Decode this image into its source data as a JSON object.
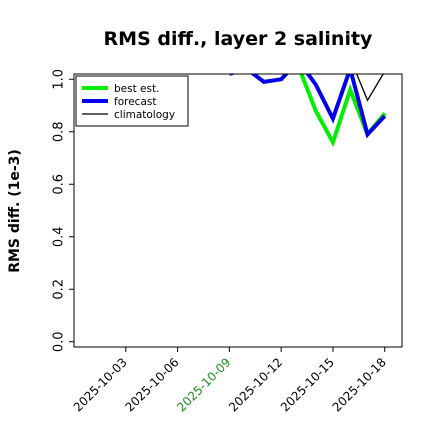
{
  "chart_data": {
    "type": "line",
    "title": "RMS diff., layer 2 salinity",
    "ylabel": "RMS diff. (1e-3)",
    "xlabel": "",
    "ylim": [
      -0.02,
      1.02
    ],
    "xlim": [
      "2025-09-30",
      "2025-10-19"
    ],
    "x_ticks": [
      "2025-10-03",
      "2025-10-06",
      "2025-10-09",
      "2025-10-12",
      "2025-10-15",
      "2025-10-18"
    ],
    "x_tick_colors": [
      "#000000",
      "#000000",
      "#1f8f1f",
      "#000000",
      "#000000",
      "#000000"
    ],
    "y_ticks": [
      "0.0",
      "0.2",
      "0.4",
      "0.6",
      "0.8",
      "1.0"
    ],
    "y_tick_values": [
      0.0,
      0.2,
      0.4,
      0.6,
      0.8,
      1.0
    ],
    "grid": false,
    "legend_placement": "top-left",
    "series": [
      {
        "name": "best est.",
        "color": "#00ee00",
        "width": 4,
        "x": [
          "2025-10-09",
          "2025-10-10",
          "2025-10-11",
          "2025-10-12",
          "2025-10-13",
          "2025-10-14",
          "2025-10-15",
          "2025-10-16",
          "2025-10-17",
          "2025-10-18"
        ],
        "y": [
          1.04,
          1.05,
          1.04,
          1.04,
          1.05,
          0.88,
          0.76,
          0.96,
          0.79,
          0.87
        ]
      },
      {
        "name": "forecast",
        "color": "#0000ee",
        "width": 4,
        "x": [
          "2025-10-09",
          "2025-10-10",
          "2025-10-11",
          "2025-10-12",
          "2025-10-13",
          "2025-10-14",
          "2025-10-15",
          "2025-10-16",
          "2025-10-17",
          "2025-10-18"
        ],
        "y": [
          1.02,
          1.04,
          0.99,
          1.0,
          1.07,
          0.98,
          0.85,
          1.04,
          0.79,
          0.86
        ]
      },
      {
        "name": "climatology",
        "color": "#000000",
        "width": 1.3,
        "x": [
          "2025-10-16",
          "2025-10-17",
          "2025-10-18"
        ],
        "y": [
          1.08,
          0.92,
          1.03
        ]
      }
    ]
  }
}
